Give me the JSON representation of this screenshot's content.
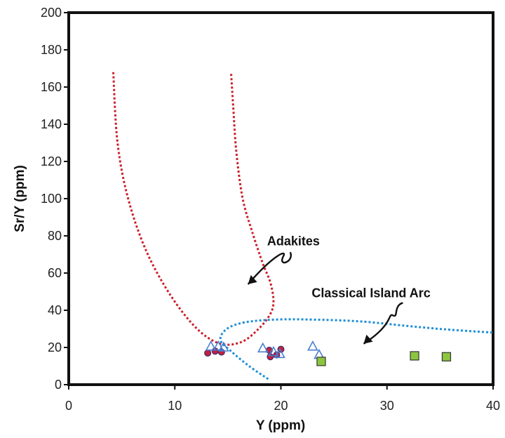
{
  "chart_data": {
    "type": "scatter",
    "title": "",
    "xlabel": "Y (ppm)",
    "ylabel": "Sr/Y (ppm)",
    "xlim": [
      0,
      40
    ],
    "ylim": [
      0,
      200
    ],
    "x_ticks": [
      0,
      10,
      20,
      30,
      40
    ],
    "y_ticks": [
      0,
      20,
      40,
      60,
      80,
      100,
      120,
      140,
      160,
      180,
      200
    ],
    "grid": false,
    "annotations": [
      {
        "text": "Adakites",
        "label_x": 18.7,
        "label_y": 75,
        "arrow_tip": [
          16.9,
          54
        ]
      },
      {
        "text": "Classical Island Arc",
        "label_x": 22.9,
        "label_y": 47,
        "arrow_tip": [
          27.8,
          22
        ]
      }
    ],
    "fields": [
      {
        "name": "Adakites",
        "color": "#cc1f2a",
        "x": [
          4.2,
          4.6,
          5.6,
          7.3,
          9.6,
          12.1,
          14.3,
          16.3,
          17.9,
          19.0,
          19.3,
          19.0,
          18.3,
          17.3,
          16.4,
          15.8,
          15.5,
          15.3
        ],
        "y": [
          168,
          130,
          100,
          72,
          48,
          30,
          22,
          23,
          30,
          38,
          45,
          55,
          65,
          82,
          100,
          125,
          150,
          168
        ]
      },
      {
        "name": "Classical Island Arc",
        "color": "#1f8fd6",
        "x": [
          18.8,
          17.0,
          15.3,
          14.3,
          14.9,
          16.6,
          19.5,
          23.0,
          27.5,
          32.0,
          36.0,
          40.0
        ],
        "y": [
          3,
          10,
          18,
          24,
          30,
          33.5,
          35,
          35,
          34,
          31.5,
          29.5,
          28
        ]
      }
    ],
    "series": [
      {
        "marker": "circle",
        "color": "#c0203a",
        "points": [
          [
            13.1,
            17
          ],
          [
            13.8,
            18
          ],
          [
            14.4,
            17.5
          ],
          [
            18.9,
            18.5
          ],
          [
            19.0,
            15
          ],
          [
            19.6,
            16
          ],
          [
            20.0,
            19
          ]
        ]
      },
      {
        "marker": "triangle",
        "color": "#4a7fd0",
        "points": [
          [
            13.4,
            20.5
          ],
          [
            14.1,
            20.5
          ],
          [
            14.6,
            20
          ],
          [
            18.3,
            19.5
          ],
          [
            19.3,
            17.5
          ],
          [
            19.9,
            16.5
          ],
          [
            23.0,
            20.5
          ],
          [
            23.6,
            16
          ]
        ]
      },
      {
        "marker": "square",
        "color": "#8cc63f",
        "points": [
          [
            23.8,
            12.5
          ],
          [
            32.6,
            15.5
          ],
          [
            35.6,
            15
          ]
        ]
      }
    ]
  }
}
